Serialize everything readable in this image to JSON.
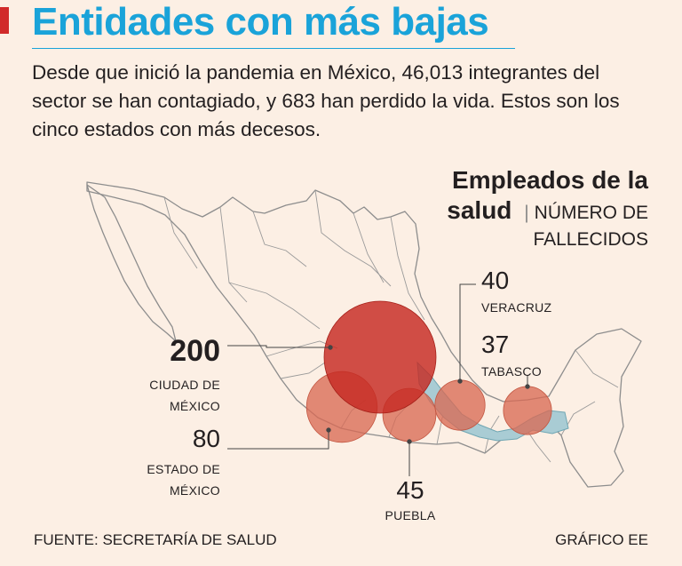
{
  "title": "Entidades con más bajas",
  "intro": "Desde que inició la pandemia en México, 46,013 integrantes del sector se han contagiado, y 683 han perdido la vida. Estos son los cinco estados con más decesos.",
  "legend": {
    "title_line1": "Empleados de la",
    "title_line2": "salud",
    "separator": "|",
    "subtitle_line1": "NÚMERO DE",
    "subtitle_line2": "FALLECIDOS"
  },
  "chart_data": {
    "type": "bubble-map",
    "title": "Empleados de la salud",
    "subtitle": "NÚMERO DE FALLECIDOS",
    "points": [
      {
        "state_line1": "CIUDAD DE",
        "state_line2": "MÉXICO",
        "value": 200,
        "label": "200"
      },
      {
        "state_line1": "ESTADO DE",
        "state_line2": "MÉXICO",
        "value": 80,
        "label": "80"
      },
      {
        "state_line1": "PUEBLA",
        "state_line2": "",
        "value": 45,
        "label": "45"
      },
      {
        "state_line1": "VERACRUZ",
        "state_line2": "",
        "value": 40,
        "label": "40"
      },
      {
        "state_line1": "TABASCO",
        "state_line2": "",
        "value": 37,
        "label": "37"
      }
    ]
  },
  "colors": {
    "background": "#fcefe4",
    "accent": "#1aa3d9",
    "title_bar": "#d12a2a",
    "bubble_large": "#c62a22",
    "bubble_small": "#d86a55",
    "highlight_region": "#a9ccd4"
  },
  "footer": {
    "source": "FUENTE: SECRETARÍA DE SALUD",
    "credit": "GRÁFICO EE"
  }
}
